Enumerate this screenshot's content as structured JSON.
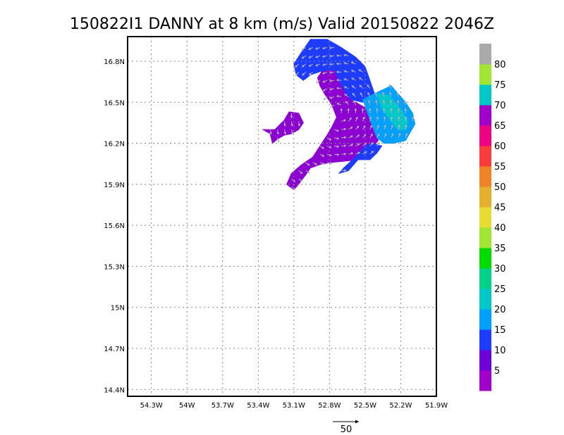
{
  "chart_data": {
    "type": "heatmap",
    "title": "150822I1 DANNY at 8 km (m/s) Valid 20150822 2046Z",
    "xlabel": "",
    "ylabel": "",
    "xlim": [
      -54.5,
      -51.9
    ],
    "ylim": [
      14.35,
      16.98
    ],
    "x_ticks": [
      -54.3,
      -54.0,
      -53.7,
      -53.4,
      -53.1,
      -52.8,
      -52.5,
      -52.2,
      -51.9
    ],
    "x_tick_labels": [
      "54.3W",
      "54W",
      "53.7W",
      "53.4W",
      "53.1W",
      "52.8W",
      "52.5W",
      "52.2W",
      "51.9W"
    ],
    "y_ticks": [
      14.4,
      14.7,
      15.0,
      15.3,
      15.6,
      15.9,
      16.2,
      16.5,
      16.8
    ],
    "y_tick_labels": [
      "14.4N",
      "14.7N",
      "15N",
      "15.3N",
      "15.6N",
      "15.9N",
      "16.2N",
      "16.5N",
      "16.8N"
    ],
    "grid": true,
    "colorbar": {
      "levels": [
        0,
        5,
        10,
        15,
        20,
        25,
        30,
        35,
        40,
        45,
        50,
        55,
        60,
        65,
        70,
        75,
        80,
        85
      ],
      "labels": [
        "5",
        "10",
        "15",
        "20",
        "25",
        "30",
        "35",
        "40",
        "45",
        "50",
        "55",
        "60",
        "65",
        "70",
        "75",
        "80"
      ],
      "colors": [
        "#a000c8",
        "#6e00dc",
        "#1e3cff",
        "#00a0ff",
        "#00c8c8",
        "#00d28c",
        "#00dc00",
        "#a0e632",
        "#e6dc32",
        "#e6af2d",
        "#f08228",
        "#fa3c3c",
        "#f00082",
        "#a000c8",
        "#00c8c8",
        "#a0e632",
        "#aaaaaa"
      ]
    },
    "regions": [
      {
        "name": "5-10",
        "color": "#8c00d2",
        "points": [
          [
            -52.86,
            16.73
          ],
          [
            -52.76,
            16.74
          ],
          [
            -52.7,
            16.62
          ],
          [
            -52.62,
            16.52
          ],
          [
            -52.5,
            16.46
          ],
          [
            -52.44,
            16.33
          ],
          [
            -52.39,
            16.22
          ],
          [
            -52.46,
            16.15
          ],
          [
            -52.56,
            16.08
          ],
          [
            -52.66,
            16.07
          ],
          [
            -52.78,
            16.06
          ],
          [
            -52.86,
            16.05
          ],
          [
            -52.96,
            16.02
          ],
          [
            -53.0,
            15.97
          ],
          [
            -53.06,
            15.9
          ],
          [
            -53.1,
            15.86
          ],
          [
            -53.16,
            15.9
          ],
          [
            -53.12,
            15.98
          ],
          [
            -53.04,
            16.04
          ],
          [
            -52.94,
            16.1
          ],
          [
            -52.88,
            16.18
          ],
          [
            -52.82,
            16.26
          ],
          [
            -52.78,
            16.32
          ],
          [
            -52.74,
            16.39
          ],
          [
            -52.78,
            16.48
          ],
          [
            -52.84,
            16.56
          ],
          [
            -52.88,
            16.62
          ],
          [
            -52.9,
            16.68
          ]
        ]
      },
      {
        "name": "5-10",
        "color": "#8c00d2",
        "points": [
          [
            -53.36,
            16.3
          ],
          [
            -53.26,
            16.3
          ],
          [
            -53.18,
            16.37
          ],
          [
            -53.14,
            16.43
          ],
          [
            -53.06,
            16.42
          ],
          [
            -53.02,
            16.35
          ],
          [
            -53.06,
            16.3
          ],
          [
            -53.12,
            16.27
          ],
          [
            -53.18,
            16.26
          ],
          [
            -53.24,
            16.23
          ],
          [
            -53.28,
            16.2
          ],
          [
            -53.3,
            16.27
          ]
        ]
      },
      {
        "name": "10-15",
        "color": "#1e3cff",
        "points": [
          [
            -52.96,
            16.96
          ],
          [
            -52.82,
            16.96
          ],
          [
            -52.7,
            16.9
          ],
          [
            -52.58,
            16.83
          ],
          [
            -52.5,
            16.76
          ],
          [
            -52.46,
            16.66
          ],
          [
            -52.42,
            16.56
          ],
          [
            -52.52,
            16.5
          ],
          [
            -52.62,
            16.52
          ],
          [
            -52.7,
            16.62
          ],
          [
            -52.76,
            16.74
          ],
          [
            -52.86,
            16.73
          ],
          [
            -52.96,
            16.7
          ],
          [
            -53.02,
            16.66
          ],
          [
            -53.08,
            16.7
          ],
          [
            -53.1,
            16.78
          ],
          [
            -53.04,
            16.86
          ]
        ]
      },
      {
        "name": "10-15",
        "color": "#1e3cff",
        "points": [
          [
            -52.56,
            16.08
          ],
          [
            -52.46,
            16.08
          ],
          [
            -52.4,
            16.13
          ],
          [
            -52.36,
            16.18
          ],
          [
            -52.44,
            16.2
          ],
          [
            -52.5,
            16.18
          ],
          [
            -52.58,
            16.1
          ],
          [
            -52.68,
            16.02
          ],
          [
            -52.72,
            15.98
          ],
          [
            -52.64,
            16.0
          ]
        ]
      },
      {
        "name": "15-20",
        "color": "#00a0ff",
        "points": [
          [
            -52.52,
            16.52
          ],
          [
            -52.38,
            16.58
          ],
          [
            -52.28,
            16.62
          ],
          [
            -52.22,
            16.56
          ],
          [
            -52.16,
            16.5
          ],
          [
            -52.1,
            16.42
          ],
          [
            -52.08,
            16.34
          ],
          [
            -52.12,
            16.28
          ],
          [
            -52.16,
            16.22
          ],
          [
            -52.26,
            16.2
          ],
          [
            -52.34,
            16.2
          ],
          [
            -52.4,
            16.24
          ],
          [
            -52.44,
            16.33
          ],
          [
            -52.48,
            16.42
          ]
        ]
      },
      {
        "name": "20-25",
        "color": "#00c8c8",
        "points": [
          [
            -52.4,
            16.56
          ],
          [
            -52.3,
            16.55
          ],
          [
            -52.2,
            16.45
          ],
          [
            -52.14,
            16.36
          ],
          [
            -52.16,
            16.3
          ],
          [
            -52.22,
            16.3
          ],
          [
            -52.3,
            16.38
          ],
          [
            -52.36,
            16.46
          ]
        ]
      }
    ],
    "vector_scale": {
      "label": "50",
      "value": 50
    }
  }
}
